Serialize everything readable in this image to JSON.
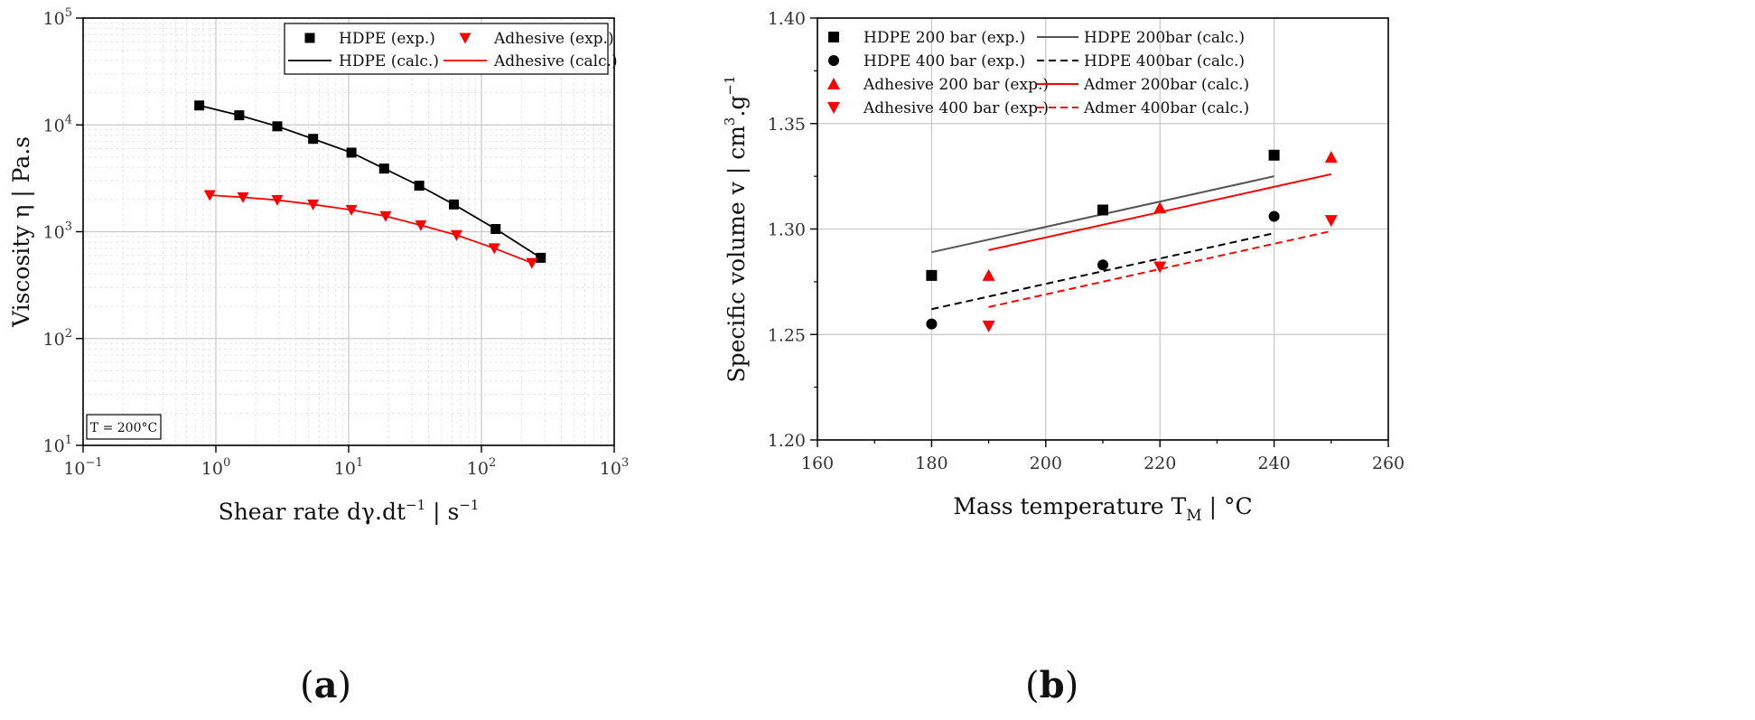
{
  "chart_data": [
    {
      "type": "line",
      "panel_label": "(a)",
      "panel_letter": "a",
      "xscale": "log",
      "yscale": "log",
      "xlim": [
        0.1,
        1000
      ],
      "ylim": [
        10,
        100000
      ],
      "xlabel": "Shear rate dγ.dt",
      "xlabel_sup": "−1",
      "xlabel_sep": " | ",
      "xlabel_unit": "s",
      "xlabel_unit_sup": "−1",
      "ylabel": "Viscosity η | Pa.s",
      "x_tick_labels": [
        {
          "base": "10",
          "exp": "−1",
          "value": 0.1
        },
        {
          "base": "10",
          "exp": "0",
          "value": 1
        },
        {
          "base": "10",
          "exp": "1",
          "value": 10
        },
        {
          "base": "10",
          "exp": "2",
          "value": 100
        },
        {
          "base": "10",
          "exp": "3",
          "value": 1000
        }
      ],
      "y_tick_labels": [
        {
          "base": "10",
          "exp": "1",
          "value": 10
        },
        {
          "base": "10",
          "exp": "2",
          "value": 100
        },
        {
          "base": "10",
          "exp": "3",
          "value": 1000
        },
        {
          "base": "10",
          "exp": "4",
          "value": 10000
        },
        {
          "base": "10",
          "exp": "5",
          "value": 100000
        }
      ],
      "annotation": "T = 200°C",
      "legend_position": "top-right",
      "grid": true,
      "series": [
        {
          "name": "HDPE (exp.)",
          "kind": "scatter",
          "marker": "square",
          "color": "#000000",
          "x": [
            0.75,
            1.5,
            2.9,
            5.4,
            10.5,
            18.5,
            34,
            62,
            128,
            280
          ],
          "y": [
            15200,
            12300,
            9700,
            7400,
            5500,
            3900,
            2700,
            1800,
            1060,
            570
          ]
        },
        {
          "name": "Adhesive (exp.)",
          "kind": "scatter",
          "marker": "triangle-down",
          "color": "#ff0000",
          "x": [
            0.9,
            1.6,
            2.9,
            5.4,
            10.5,
            19,
            35,
            65,
            125,
            240
          ],
          "y": [
            2200,
            2100,
            1980,
            1800,
            1600,
            1400,
            1150,
            930,
            700,
            510
          ]
        },
        {
          "name": "HDPE (calc.)",
          "kind": "line",
          "color": "#000000",
          "x": [
            0.75,
            1.5,
            2.9,
            5.4,
            10.5,
            18.5,
            34,
            62,
            128,
            280
          ],
          "y": [
            15200,
            12300,
            9700,
            7400,
            5500,
            3900,
            2700,
            1800,
            1060,
            570
          ]
        },
        {
          "name": "Adhesive (calc.)",
          "kind": "line",
          "color": "#ff0000",
          "x": [
            0.9,
            1.6,
            2.9,
            5.4,
            10.5,
            19,
            35,
            65,
            125,
            240
          ],
          "y": [
            2200,
            2100,
            1980,
            1800,
            1600,
            1400,
            1150,
            930,
            700,
            510
          ]
        }
      ],
      "legend_order": [
        0,
        1,
        2,
        3
      ]
    },
    {
      "type": "scatter",
      "panel_label": "(b)",
      "panel_letter": "b",
      "xscale": "linear",
      "yscale": "linear",
      "xlim": [
        160,
        260
      ],
      "ylim": [
        1.2,
        1.4
      ],
      "xlabel": "Mass temperature T",
      "xlabel_sub": "M",
      "xlabel_sep": " | ",
      "xlabel_unit": "°C",
      "ylabel": "Specific volume v | cm",
      "ylabel_sup1": "3",
      "ylabel_mid": ".g",
      "ylabel_sup2": "−1",
      "x_ticks": [
        160,
        180,
        200,
        220,
        240,
        260
      ],
      "x_tick_labels": [
        "160",
        "180",
        "200",
        "220",
        "240",
        "260"
      ],
      "y_ticks": [
        1.2,
        1.25,
        1.3,
        1.35,
        1.4
      ],
      "y_tick_labels": [
        "1.20",
        "1.25",
        "1.30",
        "1.35",
        "1.40"
      ],
      "legend_position": "top",
      "grid": true,
      "series": [
        {
          "name": "HDPE 200 bar (exp.)",
          "kind": "scatter",
          "marker": "square",
          "color": "#000000",
          "x": [
            180,
            210,
            240
          ],
          "y": [
            1.278,
            1.309,
            1.335
          ]
        },
        {
          "name": "HDPE 400 bar (exp.)",
          "kind": "scatter",
          "marker": "circle",
          "color": "#000000",
          "x": [
            180,
            210,
            240
          ],
          "y": [
            1.255,
            1.283,
            1.306
          ]
        },
        {
          "name": "Adhesive 200 bar (exp.)",
          "kind": "scatter",
          "marker": "triangle-up",
          "color": "#ff0000",
          "x": [
            190,
            220,
            250
          ],
          "y": [
            1.278,
            1.31,
            1.334
          ]
        },
        {
          "name": "Adhesive 400 bar (exp.)",
          "kind": "scatter",
          "marker": "triangle-down",
          "color": "#ff0000",
          "x": [
            190,
            220,
            250
          ],
          "y": [
            1.254,
            1.282,
            1.304
          ]
        },
        {
          "name": "HDPE 200bar (calc.)",
          "kind": "line",
          "dash": false,
          "color": "#555555",
          "x": [
            180,
            240
          ],
          "y": [
            1.289,
            1.325
          ]
        },
        {
          "name": "HDPE 400bar (calc.)",
          "kind": "line",
          "dash": true,
          "color": "#000000",
          "x": [
            180,
            240
          ],
          "y": [
            1.262,
            1.298
          ]
        },
        {
          "name": "Admer 200bar (calc.)",
          "kind": "line",
          "dash": false,
          "color": "#ff0000",
          "x": [
            190,
            250
          ],
          "y": [
            1.29,
            1.326
          ]
        },
        {
          "name": "Admer 400bar (calc.)",
          "kind": "line",
          "dash": true,
          "color": "#ff0000",
          "x": [
            190,
            250
          ],
          "y": [
            1.263,
            1.299
          ]
        }
      ],
      "legend_order": [
        0,
        4,
        1,
        5,
        2,
        6,
        3,
        7
      ]
    }
  ]
}
